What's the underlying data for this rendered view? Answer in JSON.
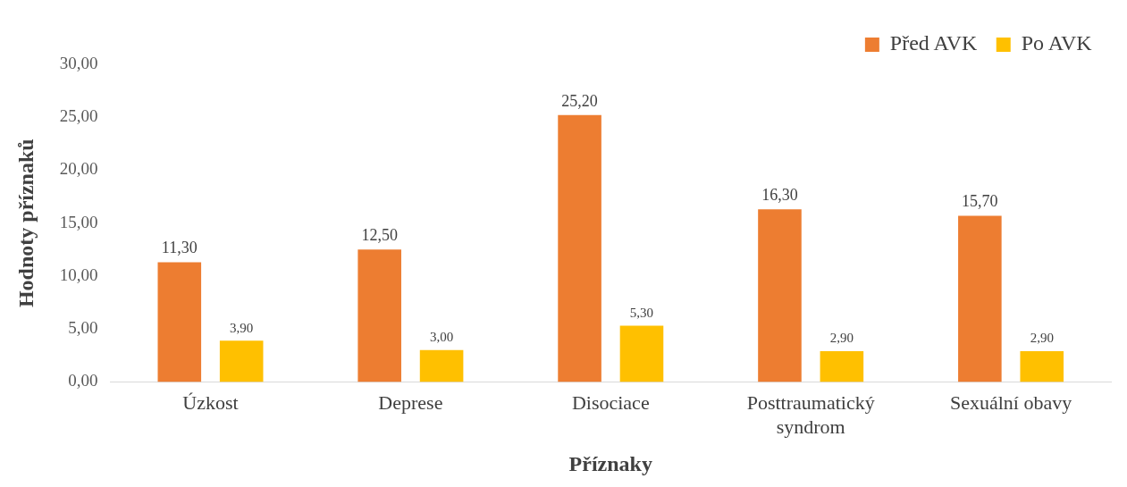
{
  "chart_data": {
    "type": "bar",
    "xlabel": "Příznaky",
    "ylabel": "Hodnoty příznaků",
    "categories": [
      "Úzkost",
      "Deprese",
      "Disociace",
      "Posttraumatický syndrom",
      "Sexuální obavy"
    ],
    "series": [
      {
        "name": "Před AVK",
        "color": "#ed7d31",
        "values": [
          11.3,
          12.5,
          25.2,
          16.3,
          15.7
        ],
        "value_labels": [
          "11,30",
          "12,50",
          "25,20",
          "16,30",
          "15,70"
        ]
      },
      {
        "name": "Po AVK",
        "color": "#ffc000",
        "values": [
          3.9,
          3.0,
          5.3,
          2.9,
          2.9
        ],
        "value_labels": [
          "3,90",
          "3,00",
          "5,30",
          "2,90",
          "2,90"
        ]
      }
    ],
    "ylim": [
      0,
      30
    ],
    "yticks": [
      {
        "value": 0,
        "label": "0,00"
      },
      {
        "value": 5,
        "label": "5,00"
      },
      {
        "value": 10,
        "label": "10,00"
      },
      {
        "value": 15,
        "label": "15,00"
      },
      {
        "value": 20,
        "label": "20,00"
      },
      {
        "value": 25,
        "label": "25,00"
      },
      {
        "value": 30,
        "label": "30,00"
      }
    ],
    "grid": false,
    "legend": "top right"
  }
}
